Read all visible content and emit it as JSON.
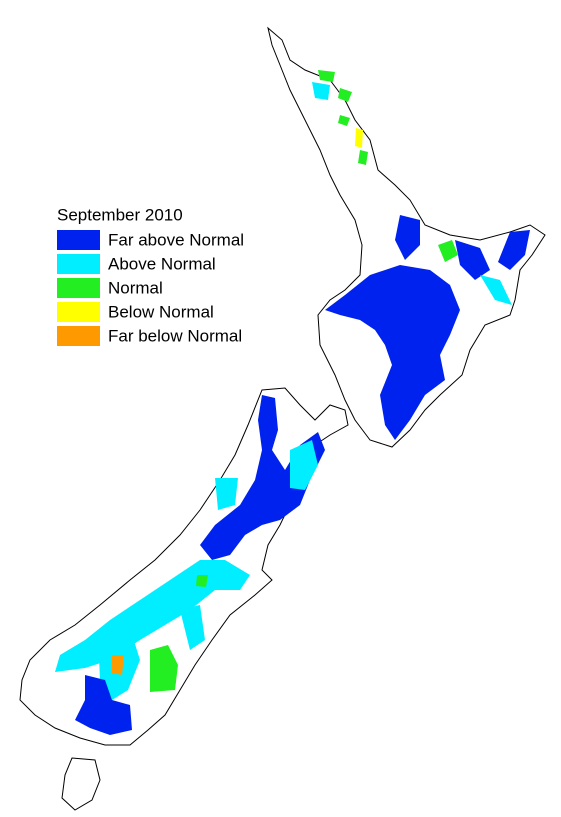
{
  "legend": {
    "title": "September 2010",
    "items": [
      {
        "label": "Far above Normal",
        "color": "#0022ee"
      },
      {
        "label": "Above Normal",
        "color": "#00eeff"
      },
      {
        "label": "Normal",
        "color": "#22ee22"
      },
      {
        "label": "Below Normal",
        "color": "#ffff00"
      },
      {
        "label": "Far below Normal",
        "color": "#ff9900"
      }
    ]
  }
}
